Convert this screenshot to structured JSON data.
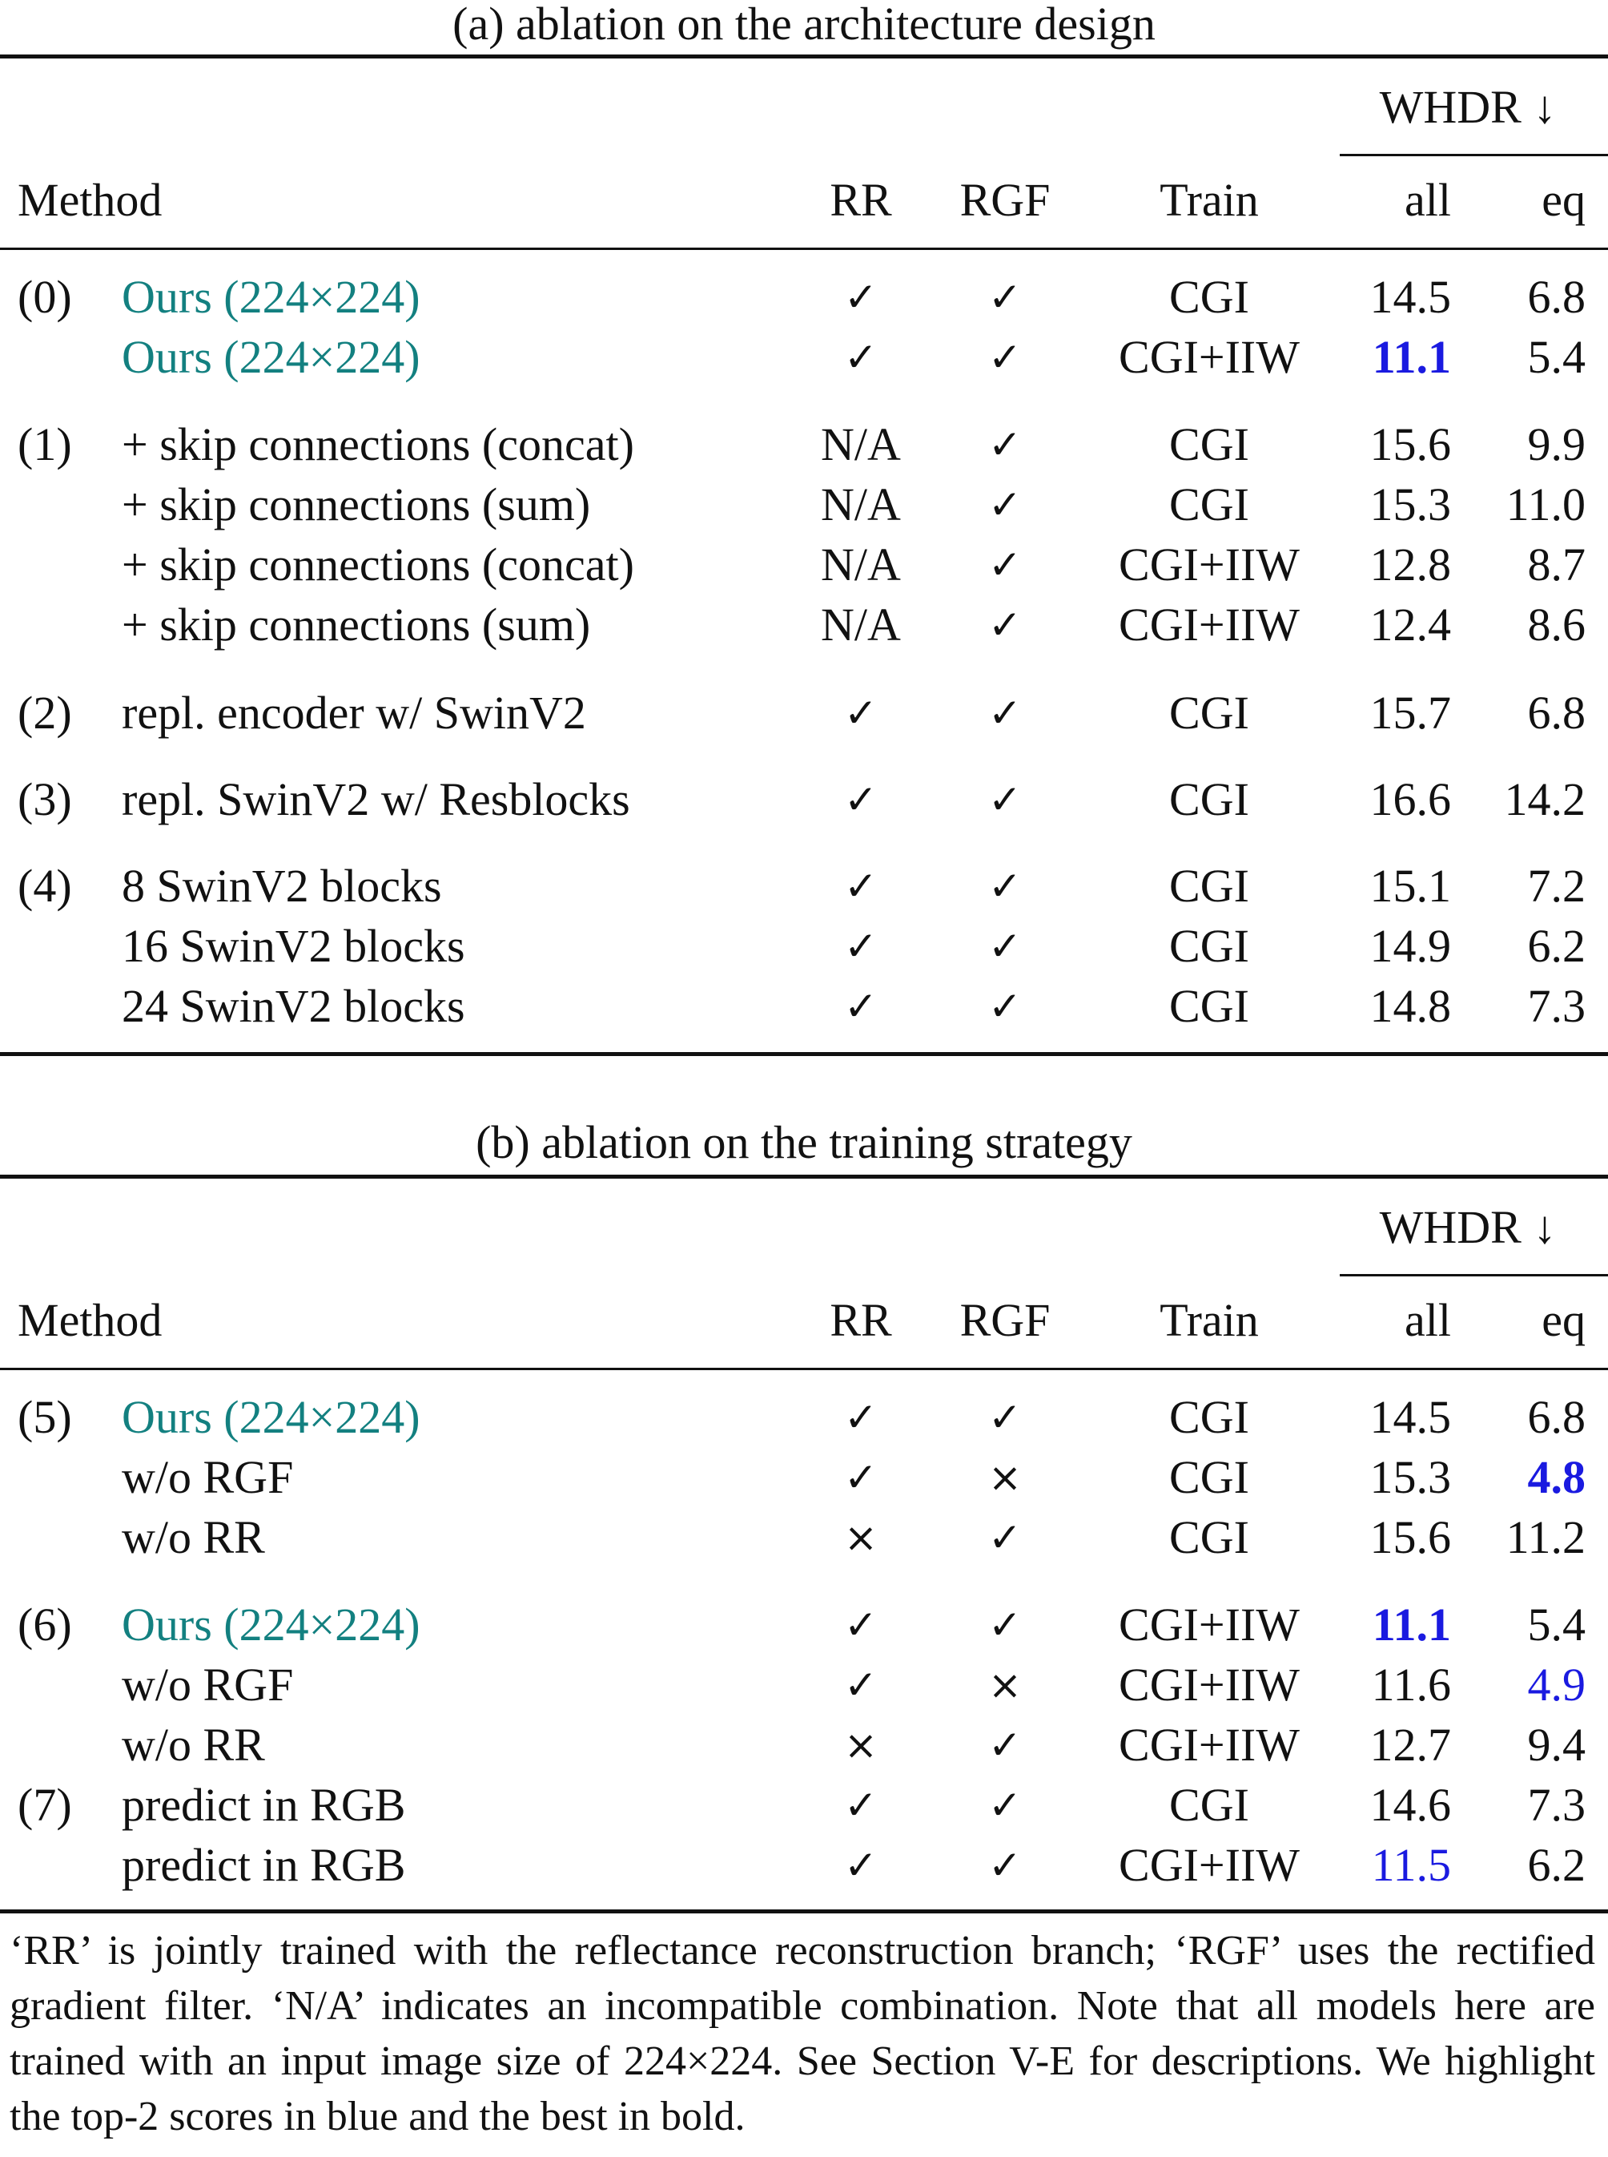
{
  "table_a": {
    "title": "(a) ablation on the architecture design",
    "header": {
      "method": "Method",
      "rr": "RR",
      "rgf": "RGF",
      "train": "Train",
      "whdr": "WHDR ↓",
      "all": "all",
      "eq": "eq"
    },
    "rows": [
      {
        "group": "(0)",
        "method": "Ours (224×224)",
        "rr": "✓",
        "rgf": "✓",
        "train": "CGI",
        "all": "14.5",
        "eq": "6.8",
        "method_style": "teal",
        "all_style": "",
        "eq_style": ""
      },
      {
        "group": "",
        "method": "Ours (224×224)",
        "rr": "✓",
        "rgf": "✓",
        "train": "CGI+IIW",
        "all": "11.1",
        "eq": "5.4",
        "method_style": "teal",
        "all_style": "blue bold",
        "eq_style": ""
      },
      {
        "group": "(1)",
        "method": "+ skip connections (concat)",
        "rr": "N/A",
        "rgf": "✓",
        "train": "CGI",
        "all": "15.6",
        "eq": "9.9",
        "method_style": "",
        "all_style": "",
        "eq_style": ""
      },
      {
        "group": "",
        "method": "+ skip connections (sum)",
        "rr": "N/A",
        "rgf": "✓",
        "train": "CGI",
        "all": "15.3",
        "eq": "11.0",
        "method_style": "",
        "all_style": "",
        "eq_style": ""
      },
      {
        "group": "",
        "method": "+ skip connections (concat)",
        "rr": "N/A",
        "rgf": "✓",
        "train": "CGI+IIW",
        "all": "12.8",
        "eq": "8.7",
        "method_style": "",
        "all_style": "",
        "eq_style": ""
      },
      {
        "group": "",
        "method": "+ skip connections (sum)",
        "rr": "N/A",
        "rgf": "✓",
        "train": "CGI+IIW",
        "all": "12.4",
        "eq": "8.6",
        "method_style": "",
        "all_style": "",
        "eq_style": ""
      },
      {
        "group": "(2)",
        "method": "repl. encoder w/ SwinV2",
        "rr": "✓",
        "rgf": "✓",
        "train": "CGI",
        "all": "15.7",
        "eq": "6.8",
        "method_style": "",
        "all_style": "",
        "eq_style": ""
      },
      {
        "group": "(3)",
        "method": "repl. SwinV2 w/ Resblocks",
        "rr": "✓",
        "rgf": "✓",
        "train": "CGI",
        "all": "16.6",
        "eq": "14.2",
        "method_style": "",
        "all_style": "",
        "eq_style": ""
      },
      {
        "group": "(4)",
        "method": "8 SwinV2 blocks",
        "rr": "✓",
        "rgf": "✓",
        "train": "CGI",
        "all": "15.1",
        "eq": "7.2",
        "method_style": "",
        "all_style": "",
        "eq_style": ""
      },
      {
        "group": "",
        "method": "16 SwinV2 blocks",
        "rr": "✓",
        "rgf": "✓",
        "train": "CGI",
        "all": "14.9",
        "eq": "6.2",
        "method_style": "",
        "all_style": "",
        "eq_style": ""
      },
      {
        "group": "",
        "method": "24 SwinV2 blocks",
        "rr": "✓",
        "rgf": "✓",
        "train": "CGI",
        "all": "14.8",
        "eq": "7.3",
        "method_style": "",
        "all_style": "",
        "eq_style": ""
      }
    ]
  },
  "table_b": {
    "title": "(b) ablation on the training strategy",
    "header": {
      "method": "Method",
      "rr": "RR",
      "rgf": "RGF",
      "train": "Train",
      "whdr": "WHDR ↓",
      "all": "all",
      "eq": "eq"
    },
    "rows": [
      {
        "group": "(5)",
        "method": "Ours (224×224)",
        "rr": "✓",
        "rgf": "✓",
        "train": "CGI",
        "all": "14.5",
        "eq": "6.8",
        "method_style": "teal",
        "all_style": "",
        "eq_style": ""
      },
      {
        "group": "",
        "method": "w/o RGF",
        "rr": "✓",
        "rgf": "×",
        "train": "CGI",
        "all": "15.3",
        "eq": "4.8",
        "method_style": "",
        "all_style": "",
        "eq_style": "blue bold"
      },
      {
        "group": "",
        "method": "w/o RR",
        "rr": "×",
        "rgf": "✓",
        "train": "CGI",
        "all": "15.6",
        "eq": "11.2",
        "method_style": "",
        "all_style": "",
        "eq_style": ""
      },
      {
        "group": "(6)",
        "method": "Ours (224×224)",
        "rr": "✓",
        "rgf": "✓",
        "train": "CGI+IIW",
        "all": "11.1",
        "eq": "5.4",
        "method_style": "teal",
        "all_style": "blue bold",
        "eq_style": ""
      },
      {
        "group": "",
        "method": "w/o RGF",
        "rr": "✓",
        "rgf": "×",
        "train": "CGI+IIW",
        "all": "11.6",
        "eq": "4.9",
        "method_style": "",
        "all_style": "",
        "eq_style": "blue"
      },
      {
        "group": "",
        "method": "w/o RR",
        "rr": "×",
        "rgf": "✓",
        "train": "CGI+IIW",
        "all": "12.7",
        "eq": "9.4",
        "method_style": "",
        "all_style": "",
        "eq_style": ""
      },
      {
        "group": "(7)",
        "method": "predict in RGB",
        "rr": "✓",
        "rgf": "✓",
        "train": "CGI",
        "all": "14.6",
        "eq": "7.3",
        "method_style": "",
        "all_style": "",
        "eq_style": ""
      },
      {
        "group": "",
        "method": "predict in RGB",
        "rr": "✓",
        "rgf": "✓",
        "train": "CGI+IIW",
        "all": "11.5",
        "eq": "6.2",
        "method_style": "",
        "all_style": "blue",
        "eq_style": ""
      }
    ]
  },
  "caption": "‘RR’ is jointly trained with the reflectance reconstruction branch; ‘RGF’ uses the rectified gradient filter. ‘N/A’ indicates an incompatible combination. Note that all models here are trained with an input image size of 224×224. See Section V-E for descriptions. We highlight the top-2 scores in blue and the best in bold.",
  "colors": {
    "teal": "#138080",
    "blue": "#1a1ae0",
    "text": "#111111"
  }
}
